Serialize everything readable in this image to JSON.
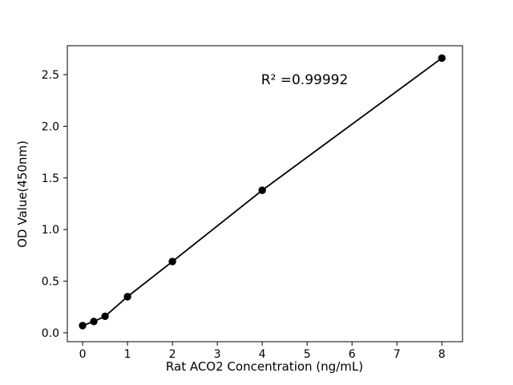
{
  "figure": {
    "background_color": "#ffffff",
    "foreground_color": "#000000"
  },
  "chart_data": {
    "type": "line",
    "description": "ELISA standard curve, scatter points with fitted line",
    "x": [
      0,
      0.25,
      0.5,
      1,
      2,
      4,
      8
    ],
    "y": [
      0.07,
      0.11,
      0.16,
      0.35,
      0.69,
      1.38,
      2.66
    ],
    "title": "",
    "xlabel": "Rat ACO2 Concentration (ng/mL)",
    "ylabel": "OD Value(450nm)",
    "xlim": [
      -0.34,
      8.46
    ],
    "ylim": [
      -0.086,
      2.78
    ],
    "xticks": [
      0,
      1,
      2,
      3,
      4,
      5,
      6,
      7,
      8
    ],
    "xtick_labels": [
      "0",
      "1",
      "2",
      "3",
      "4",
      "5",
      "6",
      "7",
      "8"
    ],
    "yticks": [
      0.0,
      0.5,
      1.0,
      1.5,
      2.0,
      2.5
    ],
    "ytick_labels": [
      "0.0",
      "0.5",
      "1.0",
      "1.5",
      "2.0",
      "2.5"
    ],
    "grid": false,
    "legend": null,
    "line_color": "#000000",
    "marker": "circle",
    "marker_color": "#000000",
    "annotation": {
      "text": "R² =0.99992",
      "x": 4.9,
      "y": 2.45
    }
  }
}
